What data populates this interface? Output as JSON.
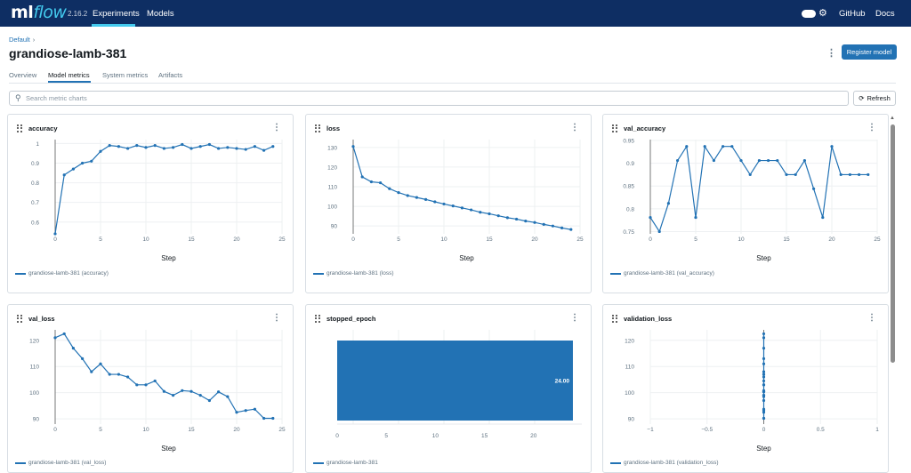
{
  "app": {
    "logo_ml": "ml",
    "logo_flow": "flow",
    "version": "2.16.2",
    "nav": [
      "Experiments",
      "Models"
    ],
    "right_links": [
      "GitHub",
      "Docs"
    ]
  },
  "breadcrumb": {
    "parent": "Default",
    "separator": "›"
  },
  "run_name": "grandiose-lamb-381",
  "actions": {
    "register": "Register model",
    "kebab": "⋮"
  },
  "tabs": [
    "Overview",
    "Model metrics",
    "System metrics",
    "Artifacts"
  ],
  "active_tab": "Model metrics",
  "search": {
    "placeholder": "Search metric charts",
    "value": ""
  },
  "refresh_label": "Refresh",
  "accent": "#2272b4",
  "chart_data": [
    {
      "type": "line",
      "title": "accuracy",
      "xlabel": "Step",
      "legend": "grandiose-lamb-381 (accuracy)",
      "xlim": [
        0,
        25
      ],
      "ylim": [
        0.54,
        1.02
      ],
      "xticks": [
        0,
        5,
        10,
        15,
        20,
        25
      ],
      "yticks": [
        0.6,
        0.7,
        0.8,
        0.9,
        1
      ],
      "ytick_labels": [
        "0.6",
        "0.7",
        "0.8",
        "0.9",
        "1"
      ],
      "x": [
        0,
        1,
        2,
        3,
        4,
        5,
        6,
        7,
        8,
        9,
        10,
        11,
        12,
        13,
        14,
        15,
        16,
        17,
        18,
        19,
        20,
        21,
        22,
        23,
        24
      ],
      "y": [
        0.54,
        0.84,
        0.87,
        0.9,
        0.91,
        0.96,
        0.99,
        0.985,
        0.975,
        0.99,
        0.98,
        0.99,
        0.975,
        0.98,
        0.995,
        0.975,
        0.985,
        0.995,
        0.975,
        0.98,
        0.975,
        0.97,
        0.985,
        0.965,
        0.985
      ]
    },
    {
      "type": "line",
      "title": "loss",
      "xlabel": "Step",
      "legend": "grandiose-lamb-381 (loss)",
      "xlim": [
        0,
        25
      ],
      "ylim": [
        86,
        134
      ],
      "xticks": [
        0,
        5,
        10,
        15,
        20,
        25
      ],
      "yticks": [
        90,
        100,
        110,
        120,
        130
      ],
      "ytick_labels": [
        "90",
        "100",
        "110",
        "120",
        "130"
      ],
      "x": [
        0,
        1,
        2,
        3,
        4,
        5,
        6,
        7,
        8,
        9,
        10,
        11,
        12,
        13,
        14,
        15,
        16,
        17,
        18,
        19,
        20,
        21,
        22,
        23,
        24
      ],
      "y": [
        130.5,
        115,
        112.5,
        112,
        109,
        107,
        105.5,
        104.5,
        103.5,
        102.3,
        101.2,
        100.2,
        99.2,
        98.2,
        97,
        96.2,
        95.2,
        94.2,
        93.5,
        92.5,
        91.8,
        90.8,
        90,
        89,
        88.2
      ]
    },
    {
      "type": "line",
      "title": "val_accuracy",
      "xlabel": "Step",
      "legend": "grandiose-lamb-381 (val_accuracy)",
      "xlim": [
        0,
        25
      ],
      "ylim": [
        0.745,
        0.952
      ],
      "xticks": [
        0,
        5,
        10,
        15,
        20,
        25
      ],
      "yticks": [
        0.75,
        0.8,
        0.85,
        0.9,
        0.95
      ],
      "ytick_labels": [
        "0.75",
        "0.8",
        "0.85",
        "0.9",
        "0.95"
      ],
      "x": [
        0,
        1,
        2,
        3,
        4,
        5,
        6,
        7,
        8,
        9,
        10,
        11,
        12,
        13,
        14,
        15,
        16,
        17,
        18,
        19,
        20,
        21,
        22,
        23,
        24
      ],
      "y": [
        0.781,
        0.75,
        0.812,
        0.906,
        0.937,
        0.781,
        0.937,
        0.906,
        0.937,
        0.937,
        0.906,
        0.875,
        0.906,
        0.906,
        0.906,
        0.875,
        0.875,
        0.906,
        0.844,
        0.781,
        0.937,
        0.875,
        0.875,
        0.875,
        0.875
      ]
    },
    {
      "type": "line",
      "title": "val_loss",
      "xlabel": "Step",
      "legend": "grandiose-lamb-381 (val_loss)",
      "xlim": [
        0,
        25
      ],
      "ylim": [
        88,
        124
      ],
      "xticks": [
        0,
        5,
        10,
        15,
        20,
        25
      ],
      "yticks": [
        90,
        100,
        110,
        120
      ],
      "ytick_labels": [
        "90",
        "100",
        "110",
        "120"
      ],
      "x": [
        0,
        1,
        2,
        3,
        4,
        5,
        6,
        7,
        8,
        9,
        10,
        11,
        12,
        13,
        14,
        15,
        16,
        17,
        18,
        19,
        20,
        21,
        22,
        23,
        24
      ],
      "y": [
        121,
        122.5,
        117,
        113,
        108,
        111,
        107,
        107,
        106,
        103,
        103,
        104.5,
        100.5,
        99,
        100.8,
        100.5,
        99,
        97,
        100.3,
        98.5,
        92.5,
        93.2,
        93.7,
        90.2,
        90.2
      ]
    },
    {
      "type": "bar",
      "title": "stopped_epoch",
      "orientation": "horizontal",
      "legend": "grandiose-lamb-381",
      "xlim": [
        0,
        25
      ],
      "xticks": [
        0,
        5,
        10,
        15,
        20
      ],
      "values": [
        24
      ],
      "data_label": "24.00"
    },
    {
      "type": "scatter",
      "title": "validation_loss",
      "xlabel": "Step",
      "legend": "grandiose-lamb-381 (validation_loss)",
      "xlim": [
        -1,
        1
      ],
      "ylim": [
        88,
        124
      ],
      "xticks": [
        -1,
        -0.5,
        0,
        0.5,
        1
      ],
      "xtick_labels": [
        "−1",
        "−0.5",
        "0",
        "0.5",
        "1"
      ],
      "yticks": [
        90,
        100,
        110,
        120
      ],
      "ytick_labels": [
        "90",
        "100",
        "110",
        "120"
      ],
      "x": [
        0,
        0,
        0,
        0,
        0,
        0,
        0,
        0,
        0,
        0,
        0,
        0,
        0,
        0,
        0,
        0,
        0,
        0,
        0,
        0,
        0,
        0,
        0,
        0,
        0
      ],
      "y": [
        121,
        122.5,
        117,
        113,
        108,
        111,
        107,
        107,
        106,
        103,
        103,
        104.5,
        100.5,
        99,
        100.8,
        100.5,
        99,
        97,
        100.3,
        98.5,
        92.5,
        93.2,
        93.7,
        90.2,
        90.2
      ]
    }
  ]
}
